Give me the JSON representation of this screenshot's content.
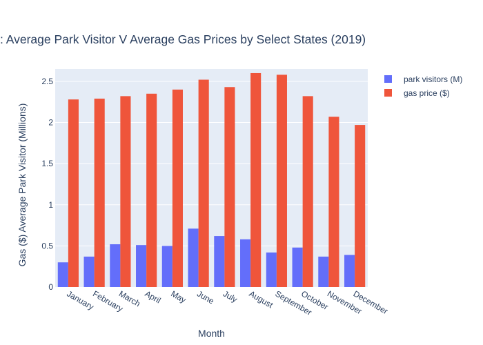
{
  "chart_data": {
    "type": "bar",
    "title": ": Average Park Visitor V Average Gas Prices by Select States (2019)",
    "xlabel": "Month",
    "ylabel": "Gas ($) Average Park Visitor (Millions)",
    "categories": [
      "January",
      "February",
      "March",
      "April",
      "May",
      "June",
      "July",
      "August",
      "September",
      "October",
      "November",
      "December"
    ],
    "series": [
      {
        "name": "park visitors (M)",
        "color": "#636efa",
        "values": [
          0.3,
          0.37,
          0.52,
          0.51,
          0.5,
          0.71,
          0.62,
          0.58,
          0.42,
          0.48,
          0.37,
          0.39
        ]
      },
      {
        "name": "gas price ($)",
        "color": "#ef553b",
        "values": [
          2.28,
          2.29,
          2.32,
          2.35,
          2.4,
          2.52,
          2.43,
          2.6,
          2.58,
          2.32,
          2.07,
          1.97
        ]
      }
    ],
    "ylim": [
      0,
      2.65
    ],
    "yticks": [
      0,
      0.5,
      1,
      1.5,
      2,
      2.5
    ],
    "ytick_labels": [
      "0",
      "0.5",
      "1",
      "1.5",
      "2",
      "2.5"
    ],
    "grid": true,
    "legend_position": "top-right"
  }
}
